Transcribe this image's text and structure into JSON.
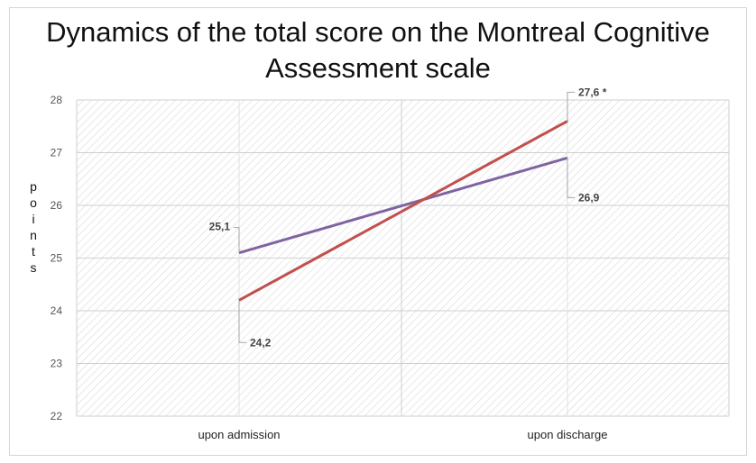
{
  "chart_data": {
    "type": "line",
    "title": "Dynamics of the total score on the Montreal Cognitive Assessment scale",
    "ylabel": "points",
    "xlabel": "",
    "categories": [
      "upon admission",
      "upon discharge"
    ],
    "ylim": [
      22,
      28
    ],
    "yticks": [
      22,
      23,
      24,
      25,
      26,
      27,
      28
    ],
    "grid": true,
    "series": [
      {
        "values": [
          25.1,
          26.9
        ],
        "labels": [
          "25,1",
          "26,9"
        ],
        "color": "#8064a2"
      },
      {
        "values": [
          24.2,
          27.6
        ],
        "labels": [
          "24,2",
          "27,6 *"
        ],
        "color": "#c0504d"
      }
    ]
  }
}
